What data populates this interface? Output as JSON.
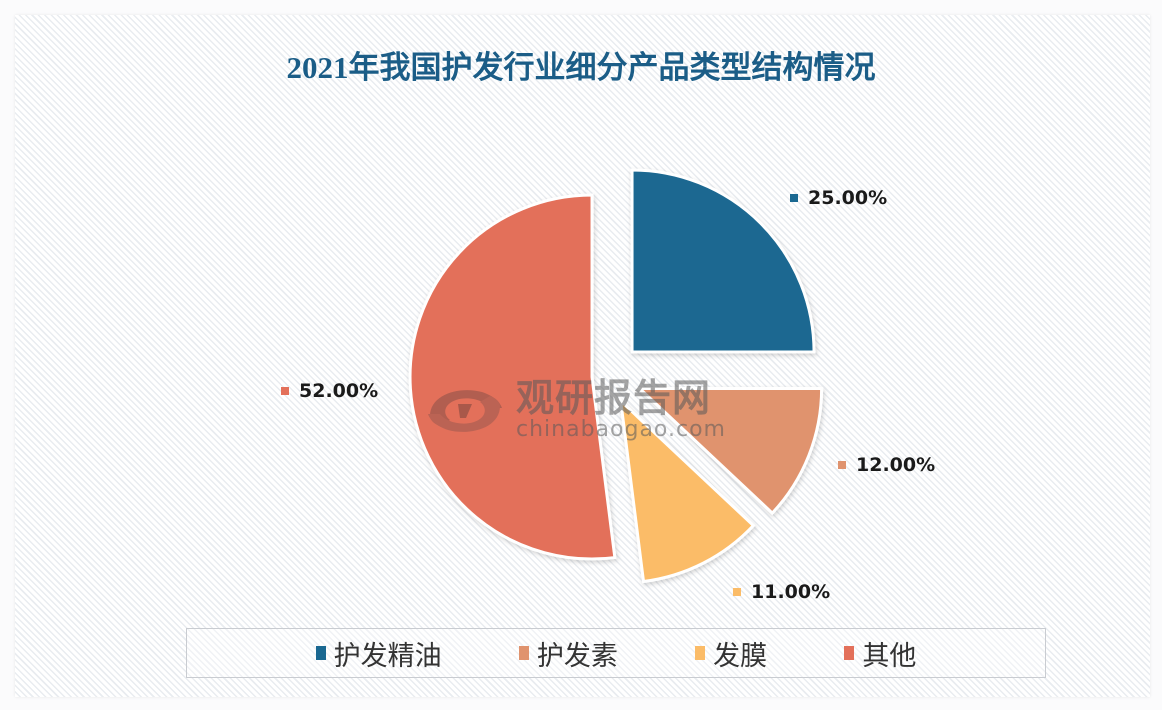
{
  "chart_data": {
    "type": "pie",
    "title": "2021年我国护发行业细分产品类型结构情况",
    "exploded": true,
    "categories": [
      "护发精油",
      "护发素",
      "发膜",
      "其他"
    ],
    "values": [
      25.0,
      12.0,
      11.0,
      52.0
    ],
    "value_labels": [
      "25.00%",
      "12.00%",
      "11.00%",
      "52.00%"
    ],
    "colors": [
      "#1a6891",
      "#e0936e",
      "#fbbc68",
      "#e3705a"
    ],
    "start_angle_deg": 0,
    "direction": "clockwise",
    "legend_position": "bottom"
  },
  "watermark": {
    "cn": "观研报告网",
    "en": "chinabaogao.com"
  }
}
